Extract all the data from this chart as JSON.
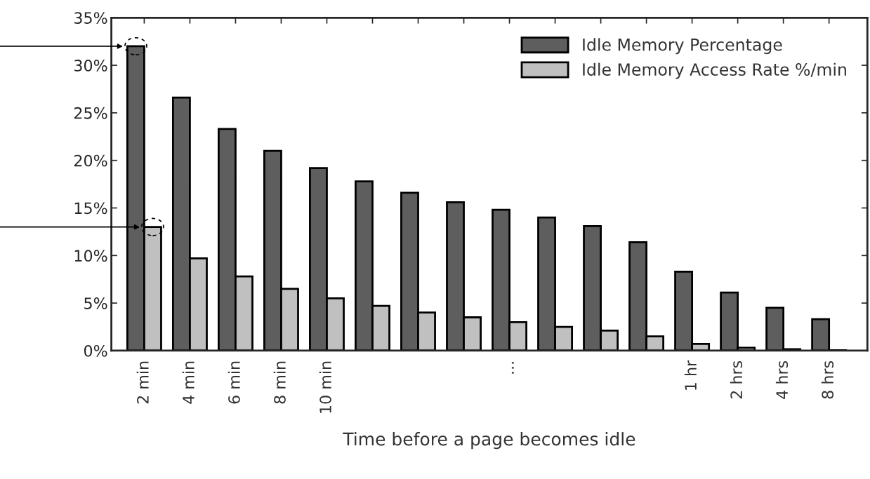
{
  "chart_data": {
    "type": "bar",
    "xlabel": "Time before a page becomes idle",
    "categories": [
      "2 min",
      "4 min",
      "6 min",
      "8 min",
      "10 min",
      null,
      null,
      null,
      "...",
      null,
      null,
      null,
      "1 hr",
      "2 hrs",
      "4 hrs",
      "8 hrs"
    ],
    "series": [
      {
        "name": "Idle Memory Percentage",
        "color": "#5e5e5e",
        "values": [
          32.0,
          26.6,
          23.3,
          21.0,
          19.2,
          17.8,
          16.6,
          15.6,
          14.8,
          14.0,
          13.1,
          11.4,
          8.3,
          6.1,
          4.5,
          3.3
        ]
      },
      {
        "name": "Idle Memory Access Rate %/min",
        "color": "#c0c0c0",
        "values": [
          13.0,
          9.7,
          7.8,
          6.5,
          5.5,
          4.7,
          4.0,
          3.5,
          3.0,
          2.5,
          2.1,
          1.5,
          0.7,
          0.3,
          0.15,
          0.05
        ]
      }
    ],
    "ylim": [
      0,
      35
    ],
    "yticks": [
      {
        "value": 0,
        "label": "0%"
      },
      {
        "value": 5,
        "label": "5%"
      },
      {
        "value": 10,
        "label": "10%"
      },
      {
        "value": 15,
        "label": "15%"
      },
      {
        "value": 20,
        "label": "20%"
      },
      {
        "value": 25,
        "label": "25%"
      },
      {
        "value": 30,
        "label": "30%"
      },
      {
        "value": 35,
        "label": "35%"
      }
    ],
    "grid": false,
    "legend": "top right"
  }
}
